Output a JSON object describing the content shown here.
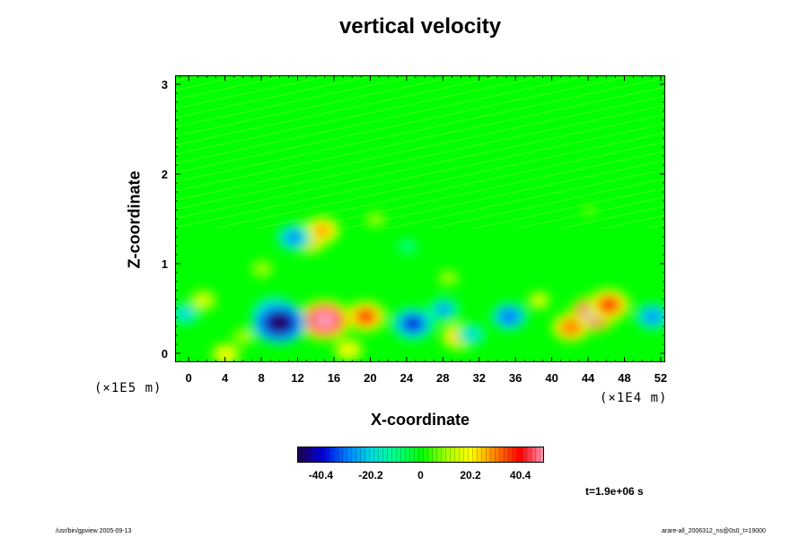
{
  "chart_data": {
    "type": "heatmap",
    "title": "vertical velocity",
    "xlabel": "X-coordinate",
    "ylabel": "Z-coordinate",
    "xlim": [
      -1.5,
      52.5
    ],
    "ylim": [
      -0.1,
      3.1
    ],
    "x_ticks": [
      "0",
      "4",
      "8",
      "12",
      "16",
      "20",
      "24",
      "28",
      "32",
      "36",
      "40",
      "44",
      "48",
      "52"
    ],
    "y_ticks": [
      "0",
      "1",
      "2",
      "3"
    ],
    "x_scale_note": "(×1E4 m)",
    "y_scale_note": "(×1E5 m)",
    "colorbar_ticks": [
      "-40.4",
      "-20.2",
      "0",
      "20.2",
      "40.4"
    ],
    "colorbar_range": [
      -50,
      50
    ],
    "colormap": [
      "#20004a",
      "#0000dc",
      "#0080ff",
      "#00dcdc",
      "#00ff80",
      "#00ff00",
      "#a0ff00",
      "#ffff00",
      "#ff8000",
      "#ff0000",
      "#ffa0c0"
    ],
    "background_value": 0,
    "features": [
      {
        "x": 14.9,
        "z": 0.38,
        "w": 52
      },
      {
        "x": 19.4,
        "z": 0.42,
        "w": 38
      },
      {
        "x": 24.6,
        "z": 0.34,
        "w": -42
      },
      {
        "x": 35.2,
        "z": 0.42,
        "w": -32
      },
      {
        "x": 44.5,
        "z": 0.45,
        "w": 48
      },
      {
        "x": 46.2,
        "z": 0.55,
        "w": 40
      },
      {
        "x": 42.0,
        "z": 0.3,
        "w": 34
      },
      {
        "x": 51.0,
        "z": 0.42,
        "w": -30
      },
      {
        "x": 9.3,
        "z": 0.45,
        "w": -44
      },
      {
        "x": 9.9,
        "z": 0.35,
        "w": -56
      },
      {
        "x": 13.1,
        "z": 1.3,
        "w": 38
      },
      {
        "x": 14.6,
        "z": 1.38,
        "w": 30
      },
      {
        "x": 11.5,
        "z": 1.3,
        "w": -30
      },
      {
        "x": 29.7,
        "z": 0.2,
        "w": 30
      },
      {
        "x": 28.0,
        "z": 0.5,
        "w": -26
      },
      {
        "x": 31.0,
        "z": 0.22,
        "w": -22
      },
      {
        "x": -0.5,
        "z": 0.45,
        "w": -22
      },
      {
        "x": 1.5,
        "z": 0.6,
        "w": 18
      },
      {
        "x": 38.5,
        "z": 0.6,
        "w": 16
      },
      {
        "x": 8.0,
        "z": 0.95,
        "w": 14
      },
      {
        "x": 28.5,
        "z": 0.85,
        "w": 12
      },
      {
        "x": 20.5,
        "z": 1.5,
        "w": 10
      },
      {
        "x": 6.0,
        "z": 0.2,
        "w": 14
      },
      {
        "x": 4.0,
        "z": 0.0,
        "w": 22
      },
      {
        "x": 24.0,
        "z": 1.2,
        "w": -12
      },
      {
        "x": 44.0,
        "z": 1.6,
        "w": 6
      },
      {
        "x": 17.5,
        "z": 0.05,
        "w": 22
      }
    ],
    "time_label": "t=1.9e+06 s"
  },
  "footer": {
    "left": "/usr/bin/gpview 2005-09-13",
    "right": "arare-all_2006312_ns@0s0_t=19000"
  }
}
